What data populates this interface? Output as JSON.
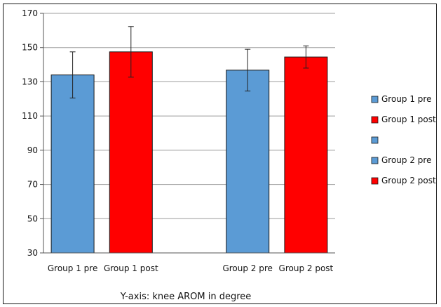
{
  "chart_data": {
    "type": "bar",
    "xlabel": "Y-axis: knee AROM in degree",
    "ylim": [
      30,
      170
    ],
    "yticks": [
      30,
      50,
      70,
      90,
      110,
      130,
      150,
      170
    ],
    "grid": true,
    "legend_position": "right",
    "categories": [
      "Group 1 pre",
      "Group 1 post",
      "",
      "Group 2 pre",
      "Group 2 post"
    ],
    "values": [
      134,
      147.5,
      null,
      136.8,
      144.5
    ],
    "error": [
      13.5,
      14.8,
      null,
      12.2,
      6.5
    ],
    "colors": [
      "#5b9bd5",
      "#ff0000",
      "#5b9bd5",
      "#5b9bd5",
      "#ff0000"
    ],
    "legend": [
      {
        "label": "Group 1 pre",
        "color": "#5b9bd5"
      },
      {
        "label": "Group 1 post",
        "color": "#ff0000"
      },
      {
        "label": "",
        "color": "#5b9bd5"
      },
      {
        "label": "Group 2 pre",
        "color": "#5b9bd5"
      },
      {
        "label": "Group 2 post",
        "color": "#ff0000"
      }
    ]
  }
}
